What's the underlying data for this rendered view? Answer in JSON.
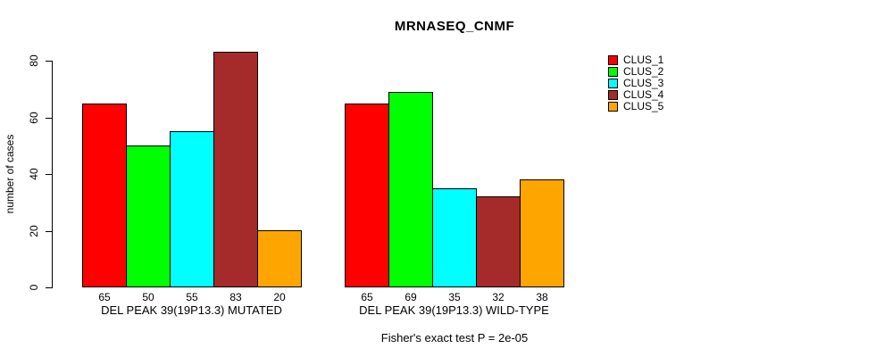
{
  "title": "MRNASEQ_CNMF",
  "y_axis": {
    "label": "number of cases",
    "ticks": [
      0,
      20,
      40,
      60,
      80
    ]
  },
  "footer": "Fisher's exact test P = 2e-05",
  "legend": {
    "items": [
      {
        "label": "CLUS_1",
        "color": "#FF0000"
      },
      {
        "label": "CLUS_2",
        "color": "#00FF00"
      },
      {
        "label": "CLUS_3",
        "color": "#00FFFF"
      },
      {
        "label": "CLUS_4",
        "color": "#A52A2A"
      },
      {
        "label": "CLUS_5",
        "color": "#FFA500"
      }
    ]
  },
  "chart_data": {
    "type": "bar",
    "title": "MRNASEQ_CNMF",
    "xlabel": "",
    "ylabel": "number of cases",
    "ylim": [
      0,
      80
    ],
    "yticks": [
      0,
      20,
      40,
      60,
      80
    ],
    "grid": false,
    "legend_position": "right",
    "bar_value_labels": true,
    "categories": [
      "DEL PEAK 39(19P13.3) MUTATED",
      "DEL PEAK 39(19P13.3) WILD-TYPE"
    ],
    "series": [
      {
        "name": "CLUS_1",
        "color": "#FF0000",
        "values": [
          65,
          65
        ]
      },
      {
        "name": "CLUS_2",
        "color": "#00FF00",
        "values": [
          50,
          69
        ]
      },
      {
        "name": "CLUS_3",
        "color": "#00FFFF",
        "values": [
          55,
          35
        ]
      },
      {
        "name": "CLUS_4",
        "color": "#A52A2A",
        "values": [
          83,
          32
        ]
      },
      {
        "name": "CLUS_5",
        "color": "#FFA500",
        "values": [
          20,
          38
        ]
      }
    ],
    "annotation": "Fisher's exact test P = 2e-05"
  }
}
